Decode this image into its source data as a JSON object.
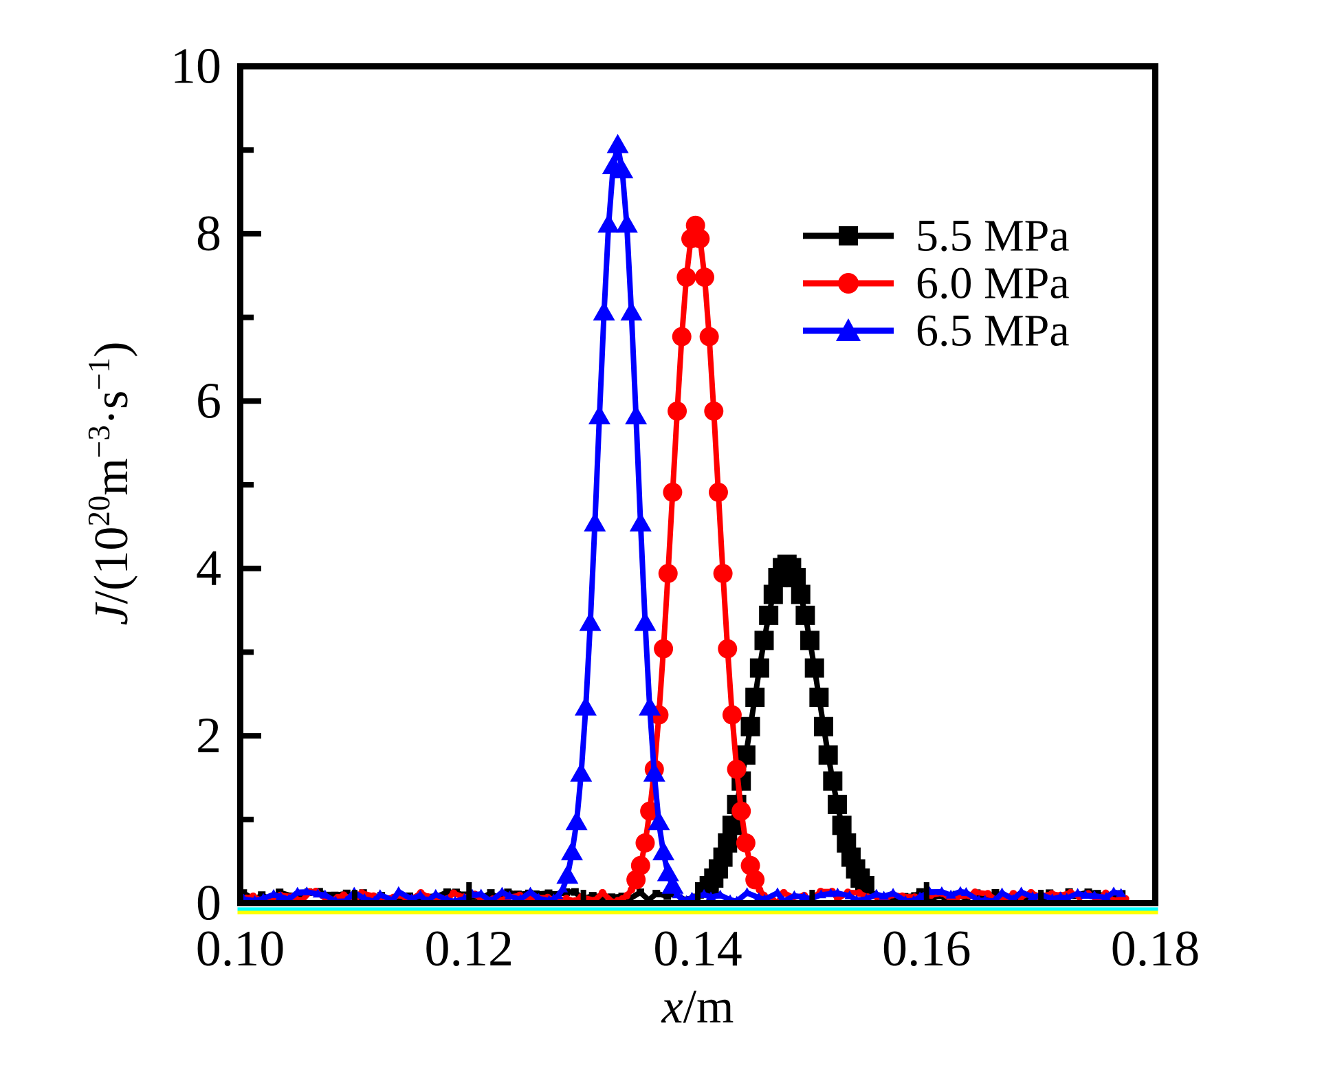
{
  "figure": {
    "background": "#ffffff"
  },
  "chart_data": {
    "type": "line",
    "title": "",
    "xlabel": {
      "italic": "x",
      "rest": "/m"
    },
    "ylabel": {
      "j": "J",
      "open": "/(10",
      "exp": "20",
      "m": "m",
      "m_exp": "−3",
      "dot_s": "·s",
      "s_exp": "−1",
      "close": ")"
    },
    "x_axis": {
      "min": 0.1,
      "max": 0.18,
      "major_values": [
        0.1,
        0.12,
        0.14,
        0.16,
        0.18
      ],
      "tick_labels": [
        "0.10",
        "0.12",
        "0.14",
        "0.16",
        "0.18"
      ],
      "minor_values": [
        0.11,
        0.13,
        0.15,
        0.17
      ]
    },
    "y_axis": {
      "min": 0,
      "max": 10,
      "major_values": [
        0,
        2,
        4,
        6,
        8,
        10
      ],
      "tick_labels": [
        "0",
        "2",
        "4",
        "6",
        "8",
        "10"
      ],
      "minor_values": [
        1,
        3,
        5,
        7,
        9
      ]
    },
    "legend": {
      "position": "upper-right"
    },
    "series": [
      {
        "name": "5.5 MPa",
        "color": "#000000",
        "marker": "square",
        "x": [
          0.139,
          0.1394,
          0.1398,
          0.1402,
          0.1406,
          0.141,
          0.1414,
          0.1418,
          0.1422,
          0.1426,
          0.143,
          0.1434,
          0.1438,
          0.1442,
          0.1446,
          0.145,
          0.1454,
          0.1458,
          0.1462,
          0.1466,
          0.147,
          0.1474,
          0.1478,
          0.1482,
          0.1486,
          0.149,
          0.1494,
          0.1498,
          0.1502,
          0.1506,
          0.151,
          0.1514,
          0.1518,
          0.1522,
          0.1526,
          0.153,
          0.1534,
          0.1538,
          0.1542,
          0.1546,
          0.155,
          0.1554,
          0.1558,
          0.1562,
          0.1566
        ],
        "y": [
          0.03,
          0.04,
          0.07,
          0.1,
          0.15,
          0.21,
          0.3,
          0.41,
          0.55,
          0.72,
          0.93,
          1.18,
          1.46,
          1.77,
          2.11,
          2.46,
          2.81,
          3.14,
          3.44,
          3.69,
          3.89,
          4.01,
          4.05,
          4.01,
          3.89,
          3.69,
          3.44,
          3.14,
          2.81,
          2.46,
          2.11,
          1.77,
          1.46,
          1.18,
          0.93,
          0.72,
          0.55,
          0.41,
          0.3,
          0.21,
          0.15,
          0.1,
          0.07,
          0.04,
          0.03
        ]
      },
      {
        "name": "6.0 MPa",
        "color": "#ff0000",
        "marker": "circle",
        "x": [
          0.1326,
          0.133,
          0.1334,
          0.1338,
          0.1342,
          0.1346,
          0.135,
          0.1354,
          0.1358,
          0.1362,
          0.1366,
          0.137,
          0.1374,
          0.1378,
          0.1382,
          0.1386,
          0.139,
          0.1394,
          0.1398,
          0.1402,
          0.1406,
          0.141,
          0.1414,
          0.1418,
          0.1422,
          0.1426,
          0.143,
          0.1434,
          0.1438,
          0.1442,
          0.1446,
          0.145,
          0.1454,
          0.1458,
          0.1462,
          0.1466,
          0.147
        ],
        "y": [
          0.01,
          0.03,
          0.05,
          0.09,
          0.16,
          0.28,
          0.45,
          0.72,
          1.1,
          1.6,
          2.25,
          3.04,
          3.94,
          4.91,
          5.88,
          6.77,
          7.48,
          7.94,
          8.1,
          7.94,
          7.48,
          6.77,
          5.88,
          4.91,
          3.94,
          3.04,
          2.25,
          1.6,
          1.1,
          0.72,
          0.45,
          0.28,
          0.16,
          0.09,
          0.05,
          0.03,
          0.01
        ]
      },
      {
        "name": "6.5 MPa",
        "color": "#0000ff",
        "marker": "triangle",
        "x": [
          0.127,
          0.1274,
          0.1278,
          0.1282,
          0.1286,
          0.129,
          0.1294,
          0.1298,
          0.1302,
          0.1306,
          0.131,
          0.1314,
          0.1318,
          0.1322,
          0.1326,
          0.133,
          0.1334,
          0.1338,
          0.1342,
          0.1346,
          0.135,
          0.1354,
          0.1358,
          0.1362,
          0.1366,
          0.137,
          0.1374,
          0.1378,
          0.1382,
          0.1386,
          0.139
        ],
        "y": [
          0.03,
          0.05,
          0.09,
          0.17,
          0.32,
          0.6,
          0.96,
          1.54,
          2.33,
          3.34,
          4.53,
          5.81,
          7.05,
          8.1,
          8.8,
          9.05,
          8.75,
          8.1,
          7.05,
          5.81,
          4.53,
          3.34,
          2.33,
          1.54,
          0.96,
          0.6,
          0.35,
          0.2,
          0.1,
          0.05,
          0.03
        ]
      }
    ],
    "noise_floor": {
      "x_min": 0.1004,
      "x_max": 0.1772,
      "step": 0.0008,
      "y_min": 0.02,
      "y_max": 0.14,
      "seeds": [
        97,
        131,
        53
      ]
    },
    "underlays": [
      {
        "name": "cyan-baseline",
        "color": "#00ffff"
      },
      {
        "name": "yellow-baseline",
        "color": "#ffff00"
      }
    ]
  }
}
